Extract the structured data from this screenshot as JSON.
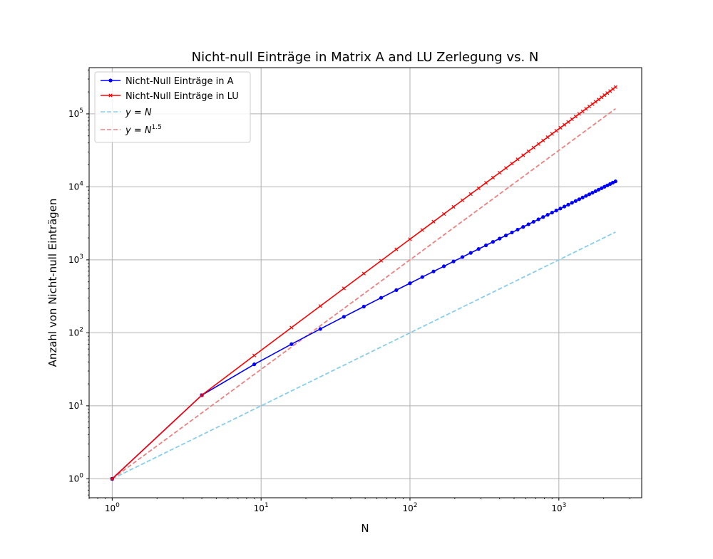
{
  "chart_data": {
    "type": "line",
    "title": "Nicht-null Einträge in Matrix A and LU Zerlegung vs. N",
    "xlabel": "N",
    "ylabel": "Anzahl von Nicht-null Einträgen",
    "xscale": "log",
    "yscale": "log",
    "xlim": [
      0.7,
      3600
    ],
    "ylim": [
      0.55,
      430000
    ],
    "grid": true,
    "legend_position": "top-left",
    "xticks": [
      {
        "value": 1,
        "base": "10",
        "exp": "0"
      },
      {
        "value": 10,
        "base": "10",
        "exp": "1"
      },
      {
        "value": 100,
        "base": "10",
        "exp": "2"
      },
      {
        "value": 1000,
        "base": "10",
        "exp": "3"
      }
    ],
    "yticks": [
      {
        "value": 1,
        "base": "10",
        "exp": "0"
      },
      {
        "value": 10,
        "base": "10",
        "exp": "1"
      },
      {
        "value": 100,
        "base": "10",
        "exp": "2"
      },
      {
        "value": 1000,
        "base": "10",
        "exp": "3"
      },
      {
        "value": 10000,
        "base": "10",
        "exp": "4"
      },
      {
        "value": 100000,
        "base": "10",
        "exp": "5"
      }
    ],
    "series": [
      {
        "name": "Nicht-Null Einträge in A",
        "color": "#0000ff",
        "style": "solid",
        "marker": "dot",
        "x": [
          1,
          4,
          9,
          16,
          25,
          36,
          49,
          64,
          81,
          100,
          121,
          144,
          169,
          196,
          225,
          256,
          289,
          324,
          361,
          400,
          441,
          484,
          529,
          576,
          625,
          676,
          729,
          784,
          841,
          900,
          961,
          1024,
          1089,
          1156,
          1225,
          1296,
          1369,
          1444,
          1521,
          1600,
          1681,
          1764,
          1849,
          1936,
          2025,
          2116,
          2209,
          2304,
          2401
        ],
        "y": [
          1,
          14,
          37,
          70,
          113,
          166,
          229,
          302,
          385,
          478,
          581,
          694,
          817,
          950,
          1093,
          1246,
          1409,
          1582,
          1765,
          1958,
          2161,
          2374,
          2597,
          2830,
          3073,
          3326,
          3589,
          3862,
          4145,
          4438,
          4741,
          5054,
          5377,
          5710,
          6053,
          6406,
          6769,
          7142,
          7525,
          7918,
          8321,
          8734,
          9157,
          9590,
          10033,
          10486,
          10949,
          11422,
          11905
        ]
      },
      {
        "name": "Nicht-Null Einträge in LU",
        "color": "#ff0000",
        "style": "solid",
        "marker": "x",
        "x": [
          1,
          4,
          9,
          16,
          25,
          36,
          49,
          64,
          81,
          100,
          121,
          144,
          169,
          196,
          225,
          256,
          289,
          324,
          361,
          400,
          441,
          484,
          529,
          576,
          625,
          676,
          729,
          784,
          841,
          900,
          961,
          1024,
          1089,
          1156,
          1225,
          1296,
          1369,
          1444,
          1521,
          1600,
          1681,
          1764,
          1849,
          1936,
          2025,
          2116,
          2209,
          2304,
          2401
        ],
        "y": [
          1,
          14,
          49,
          118,
          233,
          406,
          649,
          974,
          1393,
          1918,
          2561,
          3334,
          4249,
          5318,
          6553,
          7966,
          9569,
          11374,
          13393,
          15638,
          18121,
          20854,
          23849,
          27118,
          30673,
          34526,
          38689,
          43174,
          47993,
          53158,
          58681,
          64574,
          70849,
          77518,
          84593,
          92086,
          100009,
          108374,
          117193,
          126478,
          136241,
          146494,
          157249,
          168518,
          180313,
          192646,
          205529,
          218974,
          232993
        ]
      },
      {
        "name": "y = N",
        "legend_base": "y = N",
        "legend_sup": "",
        "color": "#87ceeb",
        "style": "dashed",
        "marker": "none",
        "x": [
          1,
          2401
        ],
        "y": [
          1,
          2401
        ]
      },
      {
        "name": "y = N^1.5",
        "legend_base": "y = N",
        "legend_sup": "1.5",
        "color": "#f08080",
        "style": "dashed",
        "marker": "none",
        "x": [
          1,
          2401
        ],
        "y": [
          1,
          117649
        ]
      }
    ]
  }
}
